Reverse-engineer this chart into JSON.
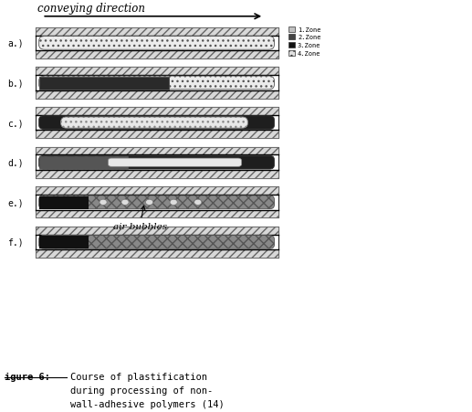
{
  "caption_label": "igure 6:",
  "caption_text1": "Course of plastification",
  "caption_text2": "during processing of non-",
  "caption_text3": "wall-adhesive polymers (14)",
  "conveying_direction": "conveying direction",
  "air_bubbles": "air bubbles",
  "row_labels": [
    "a.)",
    "b.)",
    "c.)",
    "d.)",
    "e.)",
    "f.)"
  ],
  "legend_items": [
    "1.Zone",
    "2.Zone",
    "3.Zone",
    "4.Zone"
  ],
  "bg_color": "#ffffff",
  "fig_width": 5.17,
  "fig_height": 4.52
}
